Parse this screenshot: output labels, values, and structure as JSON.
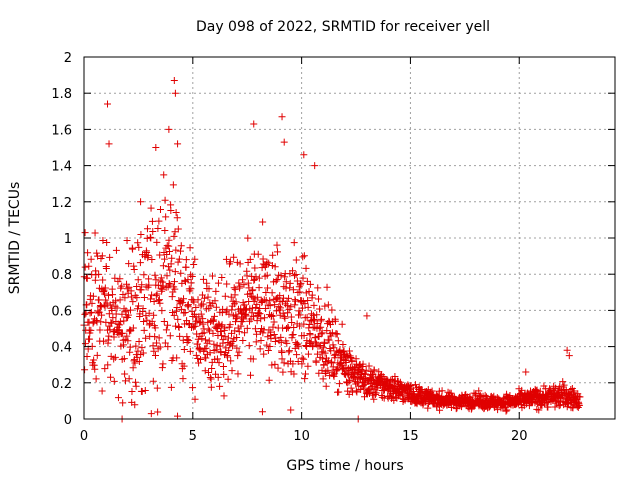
{
  "chart_data": {
    "type": "scatter",
    "title": "Day 098 of 2022, SRMTID for receiver yell",
    "xlabel": "GPS time / hours",
    "ylabel": "SRMTID / TECUs",
    "xlim": [
      0,
      24.4
    ],
    "ylim": [
      0,
      2
    ],
    "xticks": [
      0,
      5,
      10,
      15,
      20
    ],
    "yticks": [
      0,
      0.2,
      0.4,
      0.6,
      0.8,
      1,
      1.2,
      1.4,
      1.6,
      1.8,
      2
    ],
    "grid": true,
    "marker": "+",
    "color": "#e00000",
    "series": [
      {
        "name": "SRMTID",
        "envelope_hours": [
          0,
          1,
          2,
          3,
          4,
          5,
          6,
          7,
          8,
          9,
          10,
          11,
          12,
          13,
          14,
          15,
          16,
          17,
          18,
          19,
          20,
          21,
          22,
          22.8
        ],
        "envelope_median": [
          0.55,
          0.6,
          0.5,
          0.65,
          0.8,
          0.55,
          0.45,
          0.55,
          0.6,
          0.6,
          0.55,
          0.45,
          0.3,
          0.2,
          0.18,
          0.14,
          0.11,
          0.1,
          0.1,
          0.09,
          0.1,
          0.12,
          0.13,
          0.1
        ],
        "envelope_spread": [
          0.35,
          0.4,
          0.35,
          0.45,
          0.5,
          0.3,
          0.28,
          0.3,
          0.32,
          0.35,
          0.3,
          0.2,
          0.12,
          0.08,
          0.07,
          0.05,
          0.04,
          0.035,
          0.035,
          0.035,
          0.04,
          0.05,
          0.06,
          0.04
        ],
        "points": [
          [
            0.05,
            1.03
          ],
          [
            1.08,
            1.74
          ],
          [
            1.15,
            1.52
          ],
          [
            2.6,
            1.2
          ],
          [
            3.3,
            1.5
          ],
          [
            3.9,
            1.6
          ],
          [
            4.15,
            1.87
          ],
          [
            4.2,
            1.8
          ],
          [
            4.3,
            1.52
          ],
          [
            7.8,
            1.63
          ],
          [
            9.1,
            1.67
          ],
          [
            9.2,
            1.53
          ],
          [
            10.1,
            1.46
          ],
          [
            10.6,
            1.4
          ],
          [
            9.5,
            0.05
          ],
          [
            8.2,
            0.04
          ],
          [
            1.75,
            0.0
          ],
          [
            12.6,
            0.0
          ],
          [
            13.0,
            0.57
          ],
          [
            22.2,
            0.38
          ],
          [
            22.3,
            0.35
          ],
          [
            20.3,
            0.26
          ]
        ]
      }
    ]
  }
}
